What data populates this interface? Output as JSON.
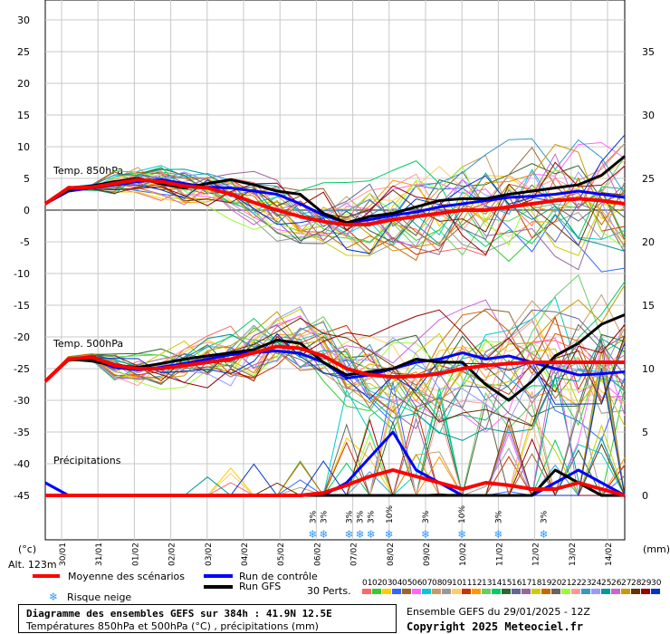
{
  "chart_data": {
    "type": "line",
    "x_dates": [
      "30/01",
      "31/01",
      "01/02",
      "02/02",
      "03/02",
      "04/02",
      "05/02",
      "06/02",
      "07/02",
      "08/02",
      "09/02",
      "10/02",
      "11/02",
      "12/02",
      "13/02",
      "14/02"
    ],
    "left_axis": {
      "unit_label": "(°c)",
      "ticks": [
        30,
        25,
        20,
        15,
        10,
        5,
        0,
        -5,
        -10,
        -15,
        -20,
        -25,
        -30,
        -35,
        -40,
        -45
      ],
      "range": [
        -45,
        30
      ]
    },
    "right_axis": {
      "unit_label": "(mm)",
      "ticks": [
        75,
        70,
        65,
        60,
        55,
        50,
        45,
        40,
        35,
        30,
        25,
        20,
        15,
        10,
        5,
        0
      ],
      "range": [
        0,
        75
      ]
    },
    "altitude_label": "Alt. 123m",
    "panel_labels": {
      "t850": "Temp. 850hPa",
      "t500": "Temp. 500hPa",
      "precip": "Précipitations"
    },
    "series": [
      {
        "name": "Moyenne des scénarios",
        "color": "#ff0000",
        "t850": [
          1,
          3.5,
          3.6,
          4.2,
          4.8,
          4.5,
          3.8,
          3.5,
          2.5,
          1.2,
          0.0,
          -1.0,
          -1.8,
          -2.3,
          -2.2,
          -1.5,
          -1.0,
          -0.5,
          0.0,
          0.0,
          0.5,
          1.0,
          1.5,
          1.8,
          1.5,
          1.0
        ],
        "t500": [
          -27,
          -23.5,
          -23.2,
          -24.5,
          -25,
          -25,
          -24.5,
          -24,
          -23.5,
          -22.5,
          -21.5,
          -21.8,
          -23,
          -25,
          -26,
          -26.3,
          -26.2,
          -25.8,
          -25,
          -24.5,
          -24.2,
          -24,
          -24,
          -24,
          -24,
          -24
        ],
        "precip": [
          0,
          0,
          0,
          0,
          0,
          0,
          0,
          0,
          0,
          0,
          0,
          0,
          0.2,
          0.8,
          1.5,
          2,
          1.5,
          1,
          0.5,
          1,
          0.8,
          0.5,
          0.5,
          1,
          0.5,
          0
        ]
      },
      {
        "name": "Run de contrôle",
        "color": "#0000ff",
        "t850": [
          1,
          3,
          3.5,
          4,
          4.5,
          4.8,
          4.2,
          3.6,
          3.5,
          3,
          2.5,
          1.0,
          -0.8,
          -2,
          -1.5,
          -0.8,
          -0.3,
          0.5,
          1,
          1.5,
          2,
          2.2,
          2.5,
          3,
          2.5,
          2
        ],
        "t500": [
          -27,
          -23.5,
          -23.5,
          -24.8,
          -25.2,
          -24.8,
          -24.2,
          -23.5,
          -22.8,
          -22.5,
          -22.2,
          -22.6,
          -24,
          -26.5,
          -26,
          -25,
          -24,
          -23.5,
          -22.5,
          -23.5,
          -23,
          -24,
          -25,
          -26,
          -25.8,
          -25.5
        ],
        "precip": [
          1,
          0,
          0,
          0,
          0,
          0,
          0,
          0,
          0,
          0,
          0,
          0,
          0,
          1,
          3,
          5,
          2,
          1,
          0,
          0,
          0,
          0,
          1,
          2,
          1,
          0
        ]
      },
      {
        "name": "Run GFS",
        "color": "#000000",
        "t850": [
          1,
          3.2,
          3.8,
          4.5,
          5,
          4.2,
          3.5,
          4.2,
          4.8,
          4,
          3,
          2.5,
          -0.5,
          -2,
          -1,
          -0.5,
          0.5,
          1.5,
          1.8,
          1.8,
          2.5,
          3,
          3.5,
          4,
          5.5,
          8.5
        ],
        "t500": [
          -27,
          -23.5,
          -23.8,
          -24.5,
          -24.8,
          -24.2,
          -23.5,
          -23,
          -22.5,
          -22,
          -20.5,
          -21,
          -24,
          -26,
          -25.5,
          -25,
          -23.5,
          -24,
          -24,
          -27.5,
          -30,
          -27,
          -23,
          -21,
          -18,
          -16.5
        ],
        "precip": [
          0,
          0,
          0,
          0,
          0,
          0,
          0,
          0,
          0,
          0,
          0,
          0,
          0,
          0,
          0,
          0,
          0,
          0,
          0,
          0,
          0,
          0,
          2,
          1,
          0,
          0
        ]
      }
    ],
    "snow_risk": [
      {
        "date_index": 6.9,
        "label": "3%"
      },
      {
        "date_index": 7.2,
        "label": "3%"
      },
      {
        "date_index": 7.9,
        "label": "3%"
      },
      {
        "date_index": 8.2,
        "label": "3%"
      },
      {
        "date_index": 8.5,
        "label": "3%"
      },
      {
        "date_index": 9.0,
        "label": "10%"
      },
      {
        "date_index": 10.0,
        "label": "3%"
      },
      {
        "date_index": 11.0,
        "label": "10%"
      },
      {
        "date_index": 12.0,
        "label": "3%"
      },
      {
        "date_index": 13.25,
        "label": "3%"
      }
    ],
    "legend": {
      "mean": "Moyenne des scénarios",
      "control": "Run de contrôle",
      "gfs": "Run GFS",
      "snow": "Risque neige",
      "perts": "30 Perts."
    },
    "perturbations": [
      {
        "id": "01",
        "color": "#ff6666"
      },
      {
        "id": "02",
        "color": "#33cc33"
      },
      {
        "id": "03",
        "color": "#ffcc00"
      },
      {
        "id": "04",
        "color": "#3366ff"
      },
      {
        "id": "05",
        "color": "#996633"
      },
      {
        "id": "06",
        "color": "#ff66ff"
      },
      {
        "id": "07",
        "color": "#00cccc"
      },
      {
        "id": "08",
        "color": "#cc9966"
      },
      {
        "id": "09",
        "color": "#999999"
      },
      {
        "id": "10",
        "color": "#ffcc66"
      },
      {
        "id": "11",
        "color": "#cc3300"
      },
      {
        "id": "12",
        "color": "#ff9900"
      },
      {
        "id": "13",
        "color": "#66cc66"
      },
      {
        "id": "14",
        "color": "#00cc66"
      },
      {
        "id": "15",
        "color": "#336633"
      },
      {
        "id": "16",
        "color": "#666699"
      },
      {
        "id": "17",
        "color": "#996699"
      },
      {
        "id": "18",
        "color": "#cccc00"
      },
      {
        "id": "19",
        "color": "#cc6600"
      },
      {
        "id": "20",
        "color": "#666666"
      },
      {
        "id": "21",
        "color": "#99ff33"
      },
      {
        "id": "22",
        "color": "#ff9999"
      },
      {
        "id": "23",
        "color": "#3399cc"
      },
      {
        "id": "24",
        "color": "#9999ff"
      },
      {
        "id": "25",
        "color": "#009999"
      },
      {
        "id": "26",
        "color": "#cc66cc"
      },
      {
        "id": "27",
        "color": "#cc9900"
      },
      {
        "id": "28",
        "color": "#663300"
      },
      {
        "id": "29",
        "color": "#990000"
      },
      {
        "id": "30",
        "color": "#0033cc"
      }
    ]
  },
  "footer": {
    "title": "Diagramme des ensembles GEFS sur 384h : 41.9N 12.5E",
    "subtitle": "Températures 850hPa et 500hPa (°C) , précipitations (mm)",
    "run_info": "Ensemble GEFS du 29/01/2025 - 12Z",
    "copyright": "Copyright 2025 Meteociel.fr"
  }
}
